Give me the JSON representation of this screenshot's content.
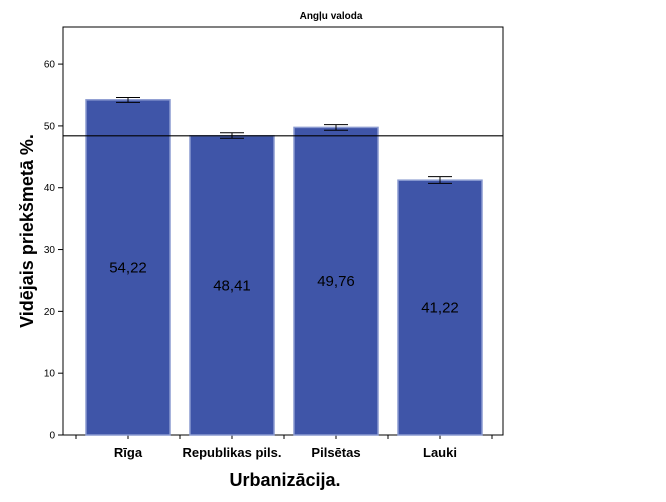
{
  "chart_data": {
    "type": "bar",
    "title": "Angļu valoda",
    "xlabel": "Urbanizācija.",
    "ylabel": "Vidējais priekšmetā %.",
    "categories": [
      "Rīga",
      "Republikas pils.",
      "Pilsētas",
      "Lauki"
    ],
    "values": [
      54.22,
      48.41,
      49.76,
      41.22
    ],
    "value_labels": [
      "54,22",
      "48,41",
      "49,76",
      "41,22"
    ],
    "error_low": [
      53.8,
      48.0,
      49.3,
      40.7
    ],
    "error_high": [
      54.6,
      48.9,
      50.2,
      41.8
    ],
    "reference_line": 48.4,
    "ylim": [
      0,
      66
    ],
    "yticks": [
      0,
      10,
      20,
      30,
      40,
      50,
      60
    ],
    "ytick_labels": [
      "0",
      "10",
      "20",
      "30",
      "40",
      "50",
      "60"
    ],
    "grid": false,
    "legend": "none",
    "bar_color": "#3f55a8",
    "bar_edge_color": "#8a9ad0"
  }
}
